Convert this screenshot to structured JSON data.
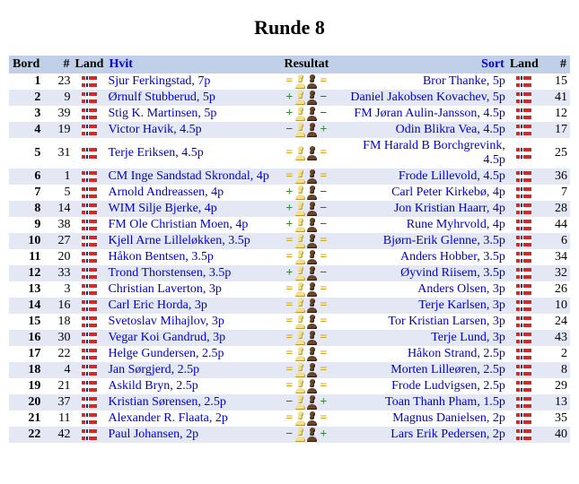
{
  "title": "Runde 8",
  "headers": {
    "bord": "Bord",
    "num": "#",
    "land": "Land",
    "white": "Hvit",
    "result": "Resultat",
    "black": "Sort"
  },
  "rows": [
    {
      "b": "1",
      "n1": "23",
      "w": "Sjur Ferkingstad, 7p",
      "r": "d",
      "k": "Bror Thanke, 5p",
      "n2": "15"
    },
    {
      "b": "2",
      "n1": "9",
      "w": "Ørnulf Stubberud, 5p",
      "r": "w",
      "k": "Daniel Jakobsen Kovachev, 5p",
      "n2": "41"
    },
    {
      "b": "3",
      "n1": "39",
      "w": "Stig K. Martinsen, 5p",
      "r": "w",
      "k": "FM Jøran Aulin-Jansson, 4.5p",
      "n2": "12"
    },
    {
      "b": "4",
      "n1": "19",
      "w": "Victor Havik, 4.5p",
      "r": "b",
      "k": "Odin Blikra Vea, 4.5p",
      "n2": "17"
    },
    {
      "b": "5",
      "n1": "31",
      "w": "Terje Eriksen, 4.5p",
      "r": "d",
      "k": "FM Harald B Borchgrevink, 4.5p",
      "n2": "25"
    },
    {
      "b": "6",
      "n1": "1",
      "w": "CM Inge Sandstad Skrondal, 4p",
      "r": "d",
      "k": "Frode Lillevold, 4.5p",
      "n2": "36"
    },
    {
      "b": "7",
      "n1": "5",
      "w": "Arnold Andreassen, 4p",
      "r": "w",
      "k": "Carl Peter Kirkebø, 4p",
      "n2": "7"
    },
    {
      "b": "8",
      "n1": "14",
      "w": "WIM Silje Bjerke, 4p",
      "r": "w",
      "k": "Jon Kristian Haarr, 4p",
      "n2": "28"
    },
    {
      "b": "9",
      "n1": "38",
      "w": "FM Ole Christian Moen, 4p",
      "r": "w",
      "k": "Rune Myhrvold, 4p",
      "n2": "44"
    },
    {
      "b": "10",
      "n1": "27",
      "w": "Kjell Arne Lilleløkken, 3.5p",
      "r": "d",
      "k": "Bjørn-Erik Glenne, 3.5p",
      "n2": "6"
    },
    {
      "b": "11",
      "n1": "20",
      "w": "Håkon Bentsen, 3.5p",
      "r": "d",
      "k": "Anders Hobber, 3.5p",
      "n2": "34"
    },
    {
      "b": "12",
      "n1": "33",
      "w": "Trond Thorstensen, 3.5p",
      "r": "w",
      "k": "Øyvind Riisem, 3.5p",
      "n2": "32"
    },
    {
      "b": "13",
      "n1": "3",
      "w": "Christian Laverton, 3p",
      "r": "d",
      "k": "Anders Olsen, 3p",
      "n2": "26"
    },
    {
      "b": "14",
      "n1": "16",
      "w": "Carl Eric Horda, 3p",
      "r": "d",
      "k": "Terje Karlsen, 3p",
      "n2": "10"
    },
    {
      "b": "15",
      "n1": "18",
      "w": "Svetoslav Mihajlov, 3p",
      "r": "d",
      "k": "Tor Kristian Larsen, 3p",
      "n2": "24"
    },
    {
      "b": "16",
      "n1": "30",
      "w": "Vegar Koi Gandrud, 3p",
      "r": "d",
      "k": "Terje Lund, 3p",
      "n2": "43"
    },
    {
      "b": "17",
      "n1": "22",
      "w": "Helge Gundersen, 2.5p",
      "r": "d",
      "k": "Håkon Strand, 2.5p",
      "n2": "2"
    },
    {
      "b": "18",
      "n1": "4",
      "w": "Jan Sørgjerd, 2.5p",
      "r": "d",
      "k": "Morten Lilleøren, 2.5p",
      "n2": "8"
    },
    {
      "b": "19",
      "n1": "21",
      "w": "Askild Bryn, 2.5p",
      "r": "d",
      "k": "Frode Ludvigsen, 2.5p",
      "n2": "29"
    },
    {
      "b": "20",
      "n1": "37",
      "w": "Kristian Sørensen, 2.5p",
      "r": "b",
      "k": "Toan Thanh Pham, 1.5p",
      "n2": "13"
    },
    {
      "b": "21",
      "n1": "11",
      "w": "Alexander R. Flaata, 2p",
      "r": "d",
      "k": "Magnus Danielsen, 2p",
      "n2": "35"
    },
    {
      "b": "22",
      "n1": "42",
      "w": "Paul Johansen, 2p",
      "r": "b",
      "k": "Lars Erik Pedersen, 2p",
      "n2": "40"
    }
  ],
  "style": {
    "header_bg": "#c0d0e8",
    "row_even": "#ffffff",
    "row_odd": "#e4e8f4",
    "link_color": "#0000cc"
  }
}
